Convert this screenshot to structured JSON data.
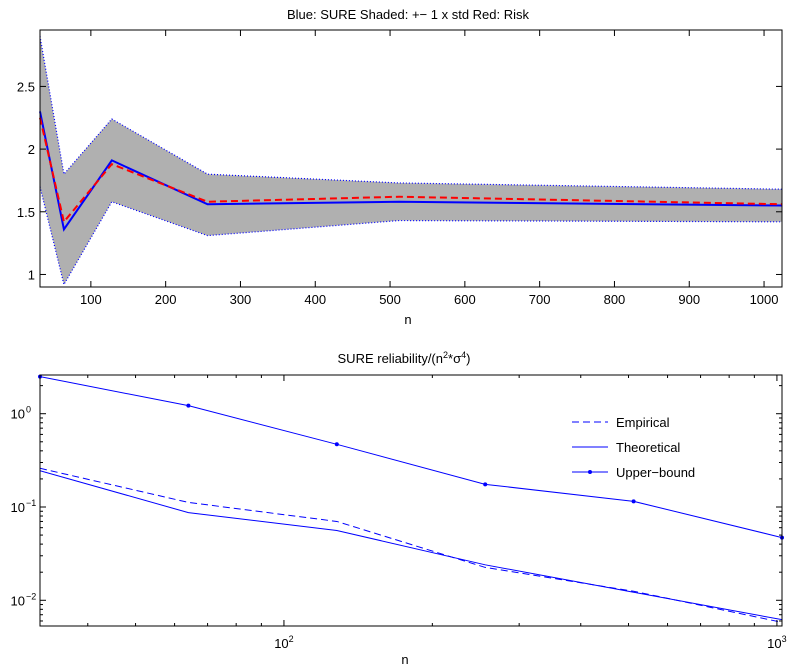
{
  "chart_data": [
    {
      "type": "line",
      "title": "Blue: SURE   Shaded: +− 1 x std   Red: Risk",
      "xlabel": "n",
      "ylabel": "",
      "xlim": [
        32,
        1024
      ],
      "ylim": [
        0.9,
        2.95
      ],
      "x_ticks": [
        100,
        200,
        300,
        400,
        500,
        600,
        700,
        800,
        900,
        1000
      ],
      "x_tick_labels": [
        "100",
        "200",
        "300",
        "400",
        "500",
        "600",
        "700",
        "800",
        "900",
        "1000"
      ],
      "y_ticks": [
        1,
        1.5,
        2,
        2.5
      ],
      "y_tick_labels": [
        "1",
        "1.5",
        "2",
        "2.5"
      ],
      "grid": false,
      "x": [
        32,
        64,
        128,
        256,
        512,
        1024
      ],
      "series": [
        {
          "role": "sure",
          "color": "#0000ff",
          "values": [
            2.3,
            1.36,
            1.91,
            1.56,
            1.58,
            1.55
          ]
        },
        {
          "role": "risk",
          "color": "#ff0000",
          "style": "dashed",
          "values": [
            2.25,
            1.42,
            1.88,
            1.58,
            1.62,
            1.56
          ]
        },
        {
          "role": "band_upper",
          "color": "#0000ff",
          "style": "dotted",
          "values": [
            2.9,
            1.8,
            2.24,
            1.8,
            1.73,
            1.68
          ]
        },
        {
          "role": "band_lower",
          "color": "#0000ff",
          "style": "dotted",
          "values": [
            1.7,
            0.92,
            1.58,
            1.31,
            1.43,
            1.42
          ]
        }
      ],
      "band_fill": "#b0b0b0"
    },
    {
      "type": "line",
      "title": "SURE reliability/(n",
      "title_sup1": "2",
      "title_mid": "*σ",
      "title_sup2": "4",
      "title_end": ")",
      "xlabel": "n",
      "ylabel": "",
      "xscale": "log",
      "yscale": "log",
      "xlim": [
        32,
        1024
      ],
      "ylim": [
        0.0053,
        2.6
      ],
      "x_ticks": [
        100,
        1000
      ],
      "x_tick_base": [
        "10",
        "10"
      ],
      "x_tick_exp": [
        "2",
        "3"
      ],
      "y_ticks": [
        0.01,
        0.1,
        1
      ],
      "y_tick_base": [
        "10",
        "10",
        "10"
      ],
      "y_tick_exp": [
        "−2",
        "−1",
        "0"
      ],
      "grid": false,
      "legend_position": "upper-right",
      "x": [
        32,
        64,
        128,
        256,
        512,
        1024
      ],
      "series": [
        {
          "name": "Empirical",
          "color": "#0000ff",
          "style": "dashed",
          "values": [
            0.26,
            0.112,
            0.07,
            0.0225,
            0.0125,
            0.0058
          ]
        },
        {
          "name": "Theoretical",
          "color": "#0000ff",
          "style": "solid",
          "values": [
            0.245,
            0.087,
            0.056,
            0.024,
            0.0122,
            0.0062
          ]
        },
        {
          "name": "Upper−bound",
          "color": "#0000ff",
          "style": "solid-marker",
          "values": [
            2.5,
            1.22,
            0.47,
            0.175,
            0.115,
            0.047
          ]
        }
      ]
    }
  ]
}
